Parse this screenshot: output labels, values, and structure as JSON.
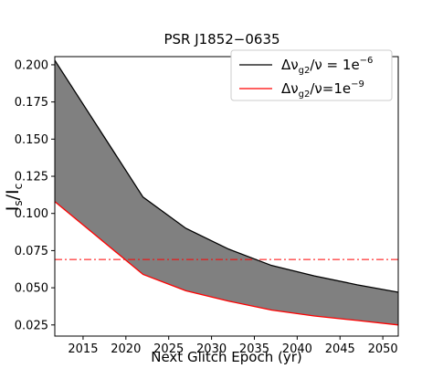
{
  "chart_data": {
    "type": "area",
    "title": "PSR J1852−0635",
    "xlabel": "Next Glitch Epoch (yr)",
    "ylabel": {
      "base": "I",
      "sub1": "s",
      "sep": "/I",
      "sub2": "c"
    },
    "xlim": [
      2011.7,
      2051.8
    ],
    "ylim": [
      0.0175,
      0.2055
    ],
    "xticks": [
      "2015",
      "2020",
      "2025",
      "2030",
      "2035",
      "2040",
      "2045",
      "2050"
    ],
    "yticks": [
      "0.025",
      "0.050",
      "0.075",
      "0.100",
      "0.125",
      "0.150",
      "0.175",
      "0.200"
    ],
    "grid": false,
    "legend_position": "top-right",
    "series": [
      {
        "name": {
          "pre": "Δν",
          "sub": "g2",
          "mid": "/ν = 1e",
          "sup": "−6"
        },
        "color": "#000000",
        "x": [
          2011.7,
          2022,
          2027,
          2032,
          2037,
          2042,
          2047,
          2051.8
        ],
        "y": [
          0.203,
          0.111,
          0.09,
          0.076,
          0.065,
          0.058,
          0.052,
          0.047
        ]
      },
      {
        "name": {
          "pre": "Δν",
          "sub": "g2",
          "mid": "/ν=1e",
          "sup": "−9"
        },
        "color": "#ff0000",
        "x": [
          2011.7,
          2022,
          2027,
          2032,
          2037,
          2042,
          2047,
          2051.8
        ],
        "y": [
          0.108,
          0.059,
          0.048,
          0.041,
          0.035,
          0.031,
          0.028,
          0.025
        ]
      }
    ],
    "fill_between": {
      "color": "#808080"
    },
    "hline": {
      "y": 0.069,
      "color": "#ff0000",
      "style": "dashdot"
    }
  }
}
